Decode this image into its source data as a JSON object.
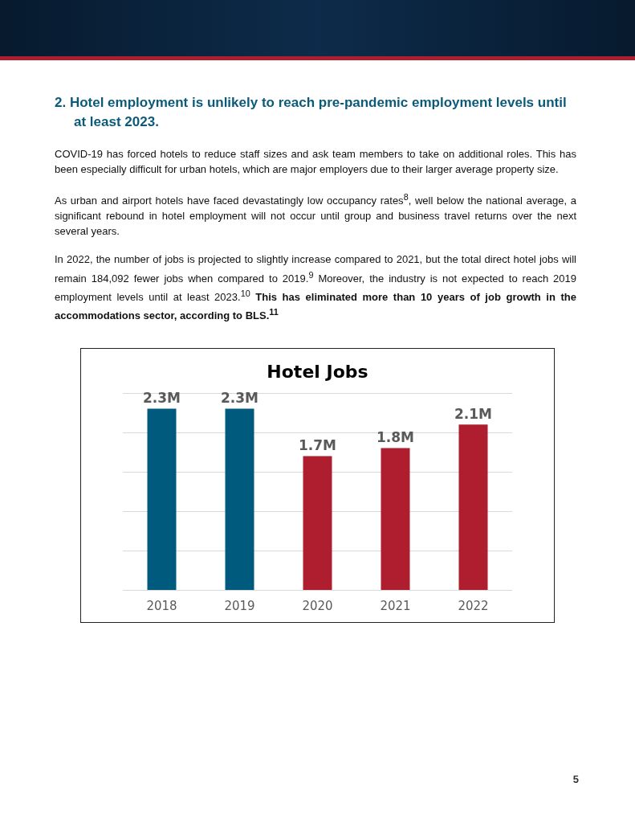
{
  "chart_data": {
    "type": "bar",
    "title": "Hotel Jobs",
    "categories": [
      "2018",
      "2019",
      "2020",
      "2021",
      "2022"
    ],
    "values": [
      2.3,
      2.3,
      1.7,
      1.8,
      2.1
    ],
    "colors": [
      "#005a7e",
      "#005a7e",
      "#ae1e2f",
      "#ae1e2f",
      "#ae1e2f"
    ],
    "value_labels": [
      "2.3M",
      "2.3M",
      "1.7M",
      "1.8M",
      "2.1M"
    ],
    "ylim": [
      0,
      2.5
    ],
    "yticks": [
      {
        "value": 0,
        "label": null
      },
      {
        "value": 0.5,
        "label": null
      },
      {
        "value": 1,
        "label": null
      },
      {
        "value": 1.5,
        "label": null
      },
      {
        "value": 2,
        "label": null
      },
      {
        "value": 2.5,
        "label": null
      }
    ],
    "tick_labels": "x",
    "grid": "y",
    "annotations": [
      "2.  Hotel employment is unlikely to reach pre-pandemic employment levels until at least 2023.",
      "COVID-19 has forced hotels to reduce staff sizes and ask team members to take on additional roles. This has been especially difficult for urban hotels, which are major employers due to their larger average property size.",
      "As urban and airport hotels have faced devastatingly low occupancy rates$^{8}$, well below the national average, a significant rebound in hotel employment will not occur until group and business travel returns over the next several years.",
      "In 2022, the number of jobs is projected to slightly increase compared to 2021, but the total direct hotel jobs will remain 184,092 fewer jobs when compared to 2019.$^{9}$ Moreover, the industry is not expected to reach 2019 employment levels until at least 2023.$^{10}$",
      "This has eliminated more than 10 years of job growth in the accommodations sector, according to BLS.$^{11}$",
      "5"
    ]
  }
}
